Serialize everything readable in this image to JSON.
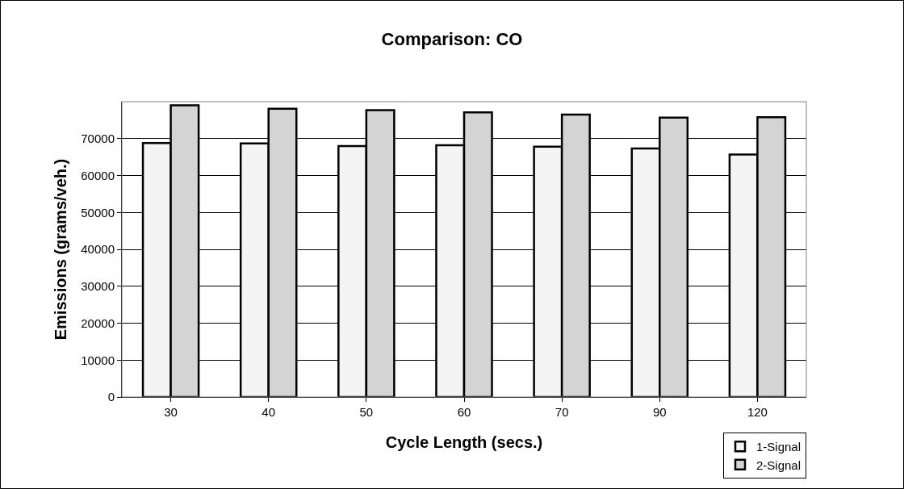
{
  "chart_data": {
    "type": "bar",
    "title": "Comparison: CO",
    "xlabel": "Cycle Length (secs.)",
    "ylabel": "Emissions (grams/veh.)",
    "categories": [
      "30",
      "40",
      "50",
      "60",
      "70",
      "90",
      "120"
    ],
    "series": [
      {
        "name": "1-Signal",
        "color": "#f4f4f4",
        "values": [
          68800,
          68700,
          68000,
          68200,
          67800,
          67300,
          65700
        ]
      },
      {
        "name": "2-Signal",
        "color": "#d4d4d4",
        "values": [
          79000,
          78100,
          77700,
          77100,
          76500,
          75700,
          75800
        ]
      }
    ],
    "ylim": [
      0,
      80000
    ],
    "yticks": [
      0,
      10000,
      20000,
      30000,
      40000,
      50000,
      60000,
      70000
    ],
    "grid": "y",
    "legend": "bottom right"
  }
}
